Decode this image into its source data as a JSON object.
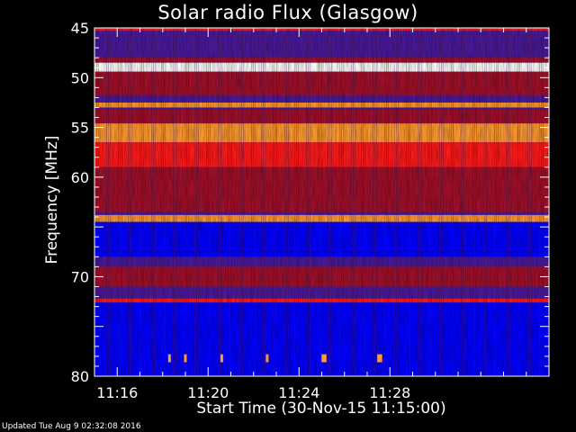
{
  "chart_data": {
    "type": "heatmap",
    "title": "Solar radio Flux (Glasgow)",
    "xlabel": "Start Time (30-Nov-15 11:15:00)",
    "ylabel": "Frequency [MHz]",
    "ylim": [
      45,
      80
    ],
    "y_direction": "increasing-downward",
    "y_ticks": [
      45,
      50,
      55,
      60,
      65,
      70,
      75,
      80
    ],
    "y_tick_labels": [
      "45",
      "50",
      "55",
      "60",
      "",
      "70",
      "",
      "80"
    ],
    "x_range_minutes": [
      11.15,
      11.4833
    ],
    "x_ticks": [
      "11:16",
      "11:20",
      "11:24",
      "11:28"
    ],
    "x_tick_minutes": [
      16,
      20,
      24,
      28
    ],
    "colormap": [
      "#1a0a3a",
      "#2a1a80",
      "#4a1a9a",
      "#0000ff",
      "#a0102a",
      "#ff1a1a",
      "#ff9a30",
      "#ffffff"
    ],
    "background_intensity": 0.35,
    "bands": [
      {
        "from_mhz": 45.0,
        "to_mhz": 45.3,
        "intensity": 0.65
      },
      {
        "from_mhz": 45.3,
        "to_mhz": 48.0,
        "intensity": 0.3
      },
      {
        "from_mhz": 48.0,
        "to_mhz": 48.5,
        "intensity": 0.55
      },
      {
        "from_mhz": 48.5,
        "to_mhz": 49.4,
        "intensity": 1.0
      },
      {
        "from_mhz": 49.4,
        "to_mhz": 51.8,
        "intensity": 0.5
      },
      {
        "from_mhz": 52.5,
        "to_mhz": 53.0,
        "intensity": 0.9
      },
      {
        "from_mhz": 53.2,
        "to_mhz": 54.6,
        "intensity": 0.6
      },
      {
        "from_mhz": 54.6,
        "to_mhz": 56.5,
        "intensity": 0.82
      },
      {
        "from_mhz": 56.5,
        "to_mhz": 59.0,
        "intensity": 0.65
      },
      {
        "from_mhz": 59.0,
        "to_mhz": 63.5,
        "intensity": 0.55
      },
      {
        "from_mhz": 63.8,
        "to_mhz": 64.5,
        "intensity": 0.8
      },
      {
        "from_mhz": 64.5,
        "to_mhz": 68.0,
        "intensity": 0.45
      },
      {
        "from_mhz": 69.0,
        "to_mhz": 71.0,
        "intensity": 0.5
      },
      {
        "from_mhz": 72.2,
        "to_mhz": 72.6,
        "intensity": 0.78
      },
      {
        "from_mhz": 72.6,
        "to_mhz": 80.0,
        "intensity": 0.4
      }
    ],
    "bursts": [
      {
        "minute": 18.3,
        "from_mhz": 77.8,
        "to_mhz": 78.6,
        "intensity": 0.9
      },
      {
        "minute": 19.0,
        "from_mhz": 77.8,
        "to_mhz": 78.6,
        "intensity": 0.9
      },
      {
        "minute": 20.6,
        "from_mhz": 77.8,
        "to_mhz": 78.6,
        "intensity": 0.9
      },
      {
        "minute": 22.6,
        "from_mhz": 77.8,
        "to_mhz": 78.6,
        "intensity": 0.9
      },
      {
        "minute": 25.05,
        "from_mhz": 77.8,
        "to_mhz": 78.6,
        "intensity": 0.9
      },
      {
        "minute": 25.15,
        "from_mhz": 77.8,
        "to_mhz": 78.6,
        "intensity": 0.9
      },
      {
        "minute": 27.5,
        "from_mhz": 77.8,
        "to_mhz": 78.6,
        "intensity": 0.9
      },
      {
        "minute": 27.6,
        "from_mhz": 77.8,
        "to_mhz": 78.6,
        "intensity": 0.9
      }
    ],
    "grid": false
  },
  "footer_text": "Updated Tue Aug  9 02:32:08 2016"
}
